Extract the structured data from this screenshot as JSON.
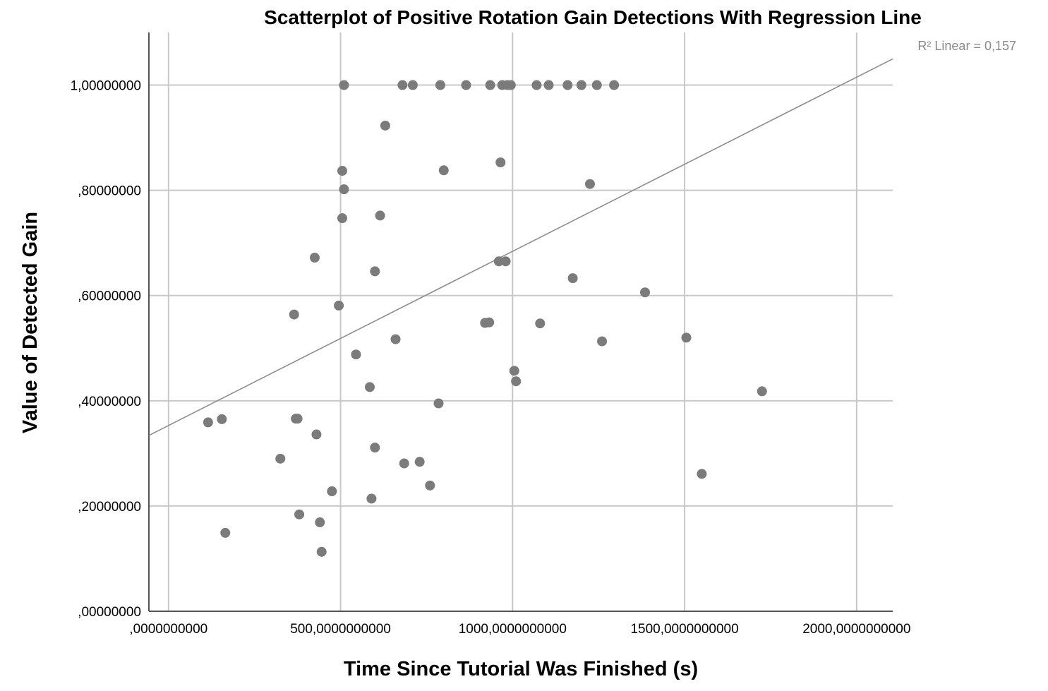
{
  "chart_data": {
    "type": "scatter",
    "title": "Scatterplot of Positive Rotation Gain Detections With Regression Line",
    "xlabel": "Time Since Tutorial Was Finished (s)",
    "ylabel": "Value of Detected Gain",
    "xlim": [
      -57,
      2105
    ],
    "ylim": [
      0,
      1.1
    ],
    "x_ticks": [
      0,
      500,
      1000,
      1500,
      2000
    ],
    "x_tick_labels": [
      ",0000000000",
      "500,0000000000",
      "1000,0000000000",
      "1500,0000000000",
      "2000,0000000000"
    ],
    "y_ticks": [
      0,
      0.2,
      0.4,
      0.6,
      0.8,
      1.0
    ],
    "y_tick_labels": [
      ",00000000",
      ",20000000",
      ",40000000",
      ",60000000",
      ",80000000",
      "1,00000000"
    ],
    "grid": true,
    "regression": {
      "label": "R² Linear = 0,157",
      "intercept": 0.353,
      "slope": 0.000331
    },
    "colors": {
      "points": "#7b7b7b",
      "line": "#8c8c8c",
      "grid": "#c8c8c8",
      "axis": "#555555"
    },
    "points": [
      [
        510,
        1.0
      ],
      [
        680,
        1.0
      ],
      [
        710,
        1.0
      ],
      [
        790,
        1.0
      ],
      [
        865,
        1.0
      ],
      [
        935,
        1.0
      ],
      [
        970,
        1.0
      ],
      [
        985,
        1.0
      ],
      [
        995,
        1.0
      ],
      [
        1070,
        1.0
      ],
      [
        1105,
        1.0
      ],
      [
        1160,
        1.0
      ],
      [
        1200,
        1.0
      ],
      [
        1245,
        1.0
      ],
      [
        1295,
        1.0
      ],
      [
        630,
        0.923
      ],
      [
        505,
        0.837
      ],
      [
        800,
        0.838
      ],
      [
        965,
        0.853
      ],
      [
        510,
        0.802
      ],
      [
        1225,
        0.812
      ],
      [
        505,
        0.747
      ],
      [
        615,
        0.752
      ],
      [
        425,
        0.672
      ],
      [
        600,
        0.646
      ],
      [
        960,
        0.665
      ],
      [
        980,
        0.665
      ],
      [
        1175,
        0.633
      ],
      [
        365,
        0.564
      ],
      [
        495,
        0.581
      ],
      [
        1385,
        0.606
      ],
      [
        920,
        0.548
      ],
      [
        932,
        0.549
      ],
      [
        1080,
        0.547
      ],
      [
        545,
        0.488
      ],
      [
        660,
        0.517
      ],
      [
        1260,
        0.513
      ],
      [
        1505,
        0.52
      ],
      [
        1005,
        0.457
      ],
      [
        1010,
        0.437
      ],
      [
        585,
        0.426
      ],
      [
        785,
        0.395
      ],
      [
        1725,
        0.418
      ],
      [
        115,
        0.359
      ],
      [
        155,
        0.365
      ],
      [
        370,
        0.366
      ],
      [
        375,
        0.366
      ],
      [
        430,
        0.336
      ],
      [
        600,
        0.311
      ],
      [
        325,
        0.29
      ],
      [
        685,
        0.281
      ],
      [
        730,
        0.284
      ],
      [
        1550,
        0.261
      ],
      [
        475,
        0.228
      ],
      [
        760,
        0.239
      ],
      [
        590,
        0.214
      ],
      [
        380,
        0.184
      ],
      [
        440,
        0.169
      ],
      [
        165,
        0.149
      ],
      [
        445,
        0.113
      ]
    ]
  }
}
